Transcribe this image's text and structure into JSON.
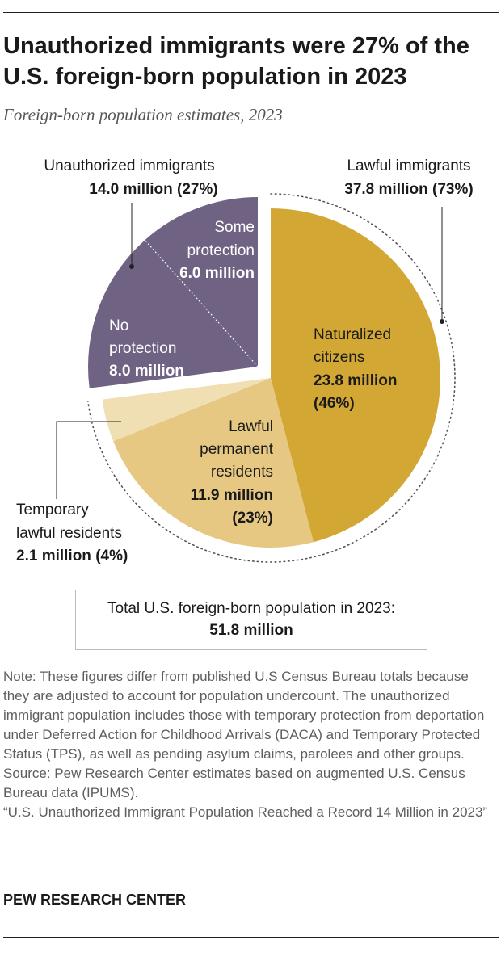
{
  "title": "Unauthorized immigrants were 27% of the U.S. foreign-born population in 2023",
  "subtitle": "Foreign-born population estimates, 2023",
  "chart_data": {
    "type": "pie",
    "unit": "million",
    "groups": [
      {
        "label": "Unauthorized immigrants",
        "value_label": "14.0 million (27%)",
        "value": 14.0,
        "percent": 27,
        "exploded": true
      },
      {
        "label": "Lawful immigrants",
        "value_label": "37.8 million (73%)",
        "value": 37.8,
        "percent": 73,
        "exploded": false
      }
    ],
    "slices": [
      {
        "id": "naturalized",
        "group": "lawful",
        "label_lines": [
          "Naturalized",
          "citizens"
        ],
        "value": 23.8,
        "value_label": "23.8 million",
        "percent_label": "(46%)",
        "color": "#d3a733"
      },
      {
        "id": "permanent",
        "group": "lawful",
        "label_lines": [
          "Lawful",
          "permanent",
          "residents"
        ],
        "value": 11.9,
        "value_label": "11.9 million",
        "percent_label": "(23%)",
        "color": "#e6c883"
      },
      {
        "id": "temporary",
        "group": "lawful",
        "label_lines": [
          "Temporary",
          "lawful residents"
        ],
        "value": 2.1,
        "value_label": "2.1 million (4%)",
        "percent_label": "",
        "color": "#f0dfb3"
      },
      {
        "id": "no-protection",
        "group": "unauthorized",
        "label_lines": [
          "No",
          "protection"
        ],
        "value": 8.0,
        "value_label": "8.0 million",
        "percent_label": "",
        "color": "#6f6283"
      },
      {
        "id": "some-protection",
        "group": "unauthorized",
        "label_lines": [
          "Some",
          "protection"
        ],
        "value": 6.0,
        "value_label": "6.0 million",
        "percent_label": "",
        "color": "#6f6283"
      }
    ],
    "total": {
      "label": "Total U.S. foreign-born population in 2023:",
      "value": 51.8,
      "value_label": "51.8 million"
    }
  },
  "notes": [
    "Note: These figures differ from published U.S Census Bureau totals because they are adjusted to account for population undercount. The unauthorized immigrant population includes those with temporary protection from deportation under Deferred Action for Childhood Arrivals (DACA) and Temporary Protected Status (TPS), as well as pending asylum claims, parolees and other groups.",
    "Source: Pew Research Center estimates based on augmented U.S. Census Bureau data (IPUMS).",
    "“U.S. Unauthorized Immigrant Population Reached a Record 14 Million in 2023”"
  ],
  "brand": "PEW RESEARCH CENTER",
  "colors": {
    "lawful_dark": "#d3a733",
    "lawful_mid": "#e6c883",
    "lawful_light": "#f0dfb3",
    "unauthorized": "#6f6283"
  }
}
